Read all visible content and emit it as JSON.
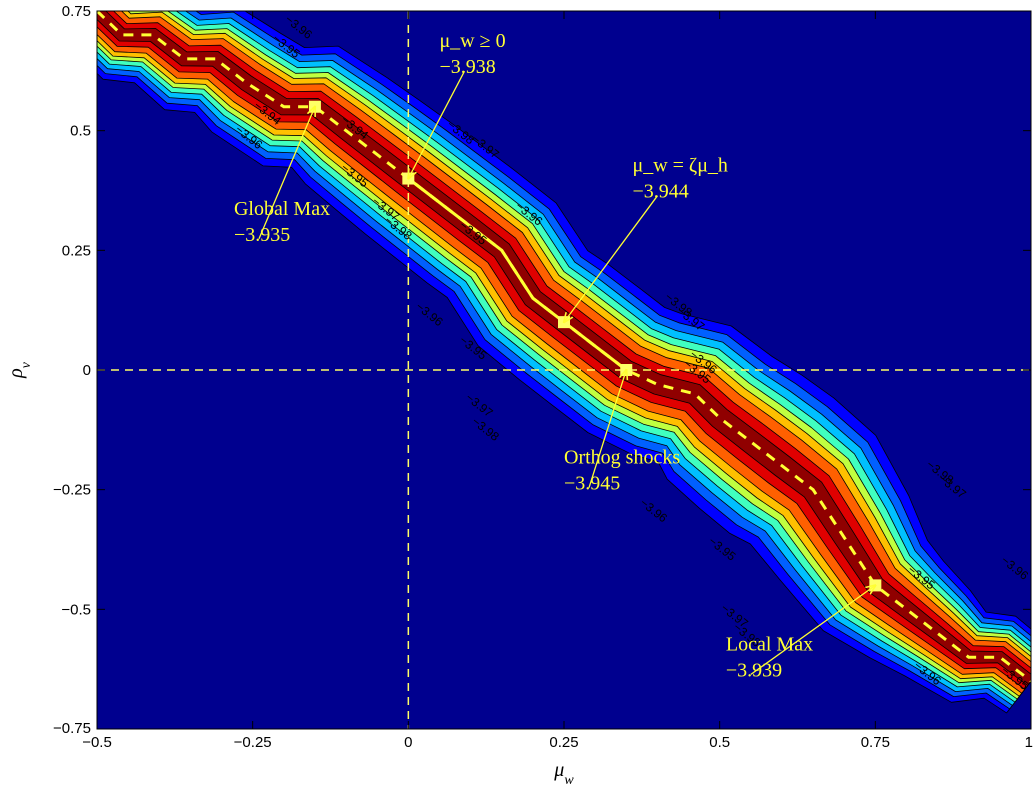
{
  "chart_data": {
    "type": "contour",
    "xlabel": "μ_w",
    "ylabel": "ρ_v",
    "xlim": [
      -0.5,
      1.0
    ],
    "ylim": [
      -0.75,
      0.75
    ],
    "x_ticks": [
      {
        "value": -0.5,
        "label": "−0.5"
      },
      {
        "value": -0.25,
        "label": "−0.25"
      },
      {
        "value": 0,
        "label": "0"
      },
      {
        "value": 0.25,
        "label": "0.25"
      },
      {
        "value": 0.5,
        "label": "0.5"
      },
      {
        "value": 0.75,
        "label": "0.75"
      },
      {
        "value": 1.0,
        "label": "1"
      }
    ],
    "y_ticks": [
      {
        "value": 0.75,
        "label": "0.75"
      },
      {
        "value": 0.5,
        "label": "0.5"
      },
      {
        "value": 0.25,
        "label": "0.25"
      },
      {
        "value": 0,
        "label": "0"
      },
      {
        "value": -0.25,
        "label": "−0.25"
      },
      {
        "value": -0.5,
        "label": "−0.5"
      },
      {
        "value": -0.75,
        "label": "−0.75"
      }
    ],
    "reference_lines": {
      "x": 0,
      "y": 0
    },
    "ridge_path": [
      [
        -0.5,
        0.75
      ],
      [
        -0.46,
        0.7
      ],
      [
        -0.41,
        0.7
      ],
      [
        -0.36,
        0.65
      ],
      [
        -0.31,
        0.65
      ],
      [
        -0.26,
        0.6
      ],
      [
        -0.2,
        0.55
      ],
      [
        -0.15,
        0.55
      ],
      [
        -0.1,
        0.5
      ],
      [
        -0.05,
        0.45
      ],
      [
        0,
        0.4
      ],
      [
        0.1,
        0.3
      ],
      [
        0.15,
        0.25
      ],
      [
        0.2,
        0.15
      ],
      [
        0.25,
        0.1
      ],
      [
        0.3,
        0.05
      ],
      [
        0.35,
        0
      ],
      [
        0.4,
        -0.03
      ],
      [
        0.46,
        -0.05
      ],
      [
        0.5,
        -0.1
      ],
      [
        0.55,
        -0.15
      ],
      [
        0.6,
        -0.2
      ],
      [
        0.65,
        -0.25
      ],
      [
        0.7,
        -0.35
      ],
      [
        0.75,
        -0.45
      ],
      [
        0.8,
        -0.5
      ],
      [
        0.85,
        -0.55
      ],
      [
        0.9,
        -0.6
      ],
      [
        0.95,
        -0.6
      ],
      [
        1.0,
        -0.65
      ]
    ],
    "constrained_path": [
      [
        0,
        0.4
      ],
      [
        0.1,
        0.3
      ],
      [
        0.15,
        0.25
      ],
      [
        0.2,
        0.15
      ],
      [
        0.25,
        0.1
      ],
      [
        0.3,
        0.05
      ],
      [
        0.35,
        0
      ]
    ],
    "contour_labels": [
      {
        "text": "−3.96",
        "x": -0.18,
        "y": 0.71
      },
      {
        "text": "−3.95",
        "x": -0.2,
        "y": 0.67
      },
      {
        "text": "−3.94",
        "x": -0.23,
        "y": 0.53
      },
      {
        "text": "−3.94",
        "x": -0.09,
        "y": 0.5
      },
      {
        "text": "−3.96",
        "x": -0.26,
        "y": 0.48
      },
      {
        "text": "−3.95",
        "x": -0.09,
        "y": 0.4
      },
      {
        "text": "−3.97",
        "x": -0.04,
        "y": 0.33
      },
      {
        "text": "−3.98",
        "x": -0.02,
        "y": 0.29
      },
      {
        "text": "−3.98",
        "x": 0.08,
        "y": 0.49
      },
      {
        "text": "−3.97",
        "x": 0.12,
        "y": 0.46
      },
      {
        "text": "−3.96",
        "x": 0.19,
        "y": 0.32
      },
      {
        "text": "−3.95",
        "x": 0.1,
        "y": 0.28
      },
      {
        "text": "−3.96",
        "x": 0.03,
        "y": 0.11
      },
      {
        "text": "−3.95",
        "x": 0.1,
        "y": 0.04
      },
      {
        "text": "−3.97",
        "x": 0.11,
        "y": -0.08
      },
      {
        "text": "−3.98",
        "x": 0.12,
        "y": -0.13
      },
      {
        "text": "−3.98",
        "x": 0.43,
        "y": 0.13
      },
      {
        "text": "−3.97",
        "x": 0.45,
        "y": 0.1
      },
      {
        "text": "−3.96",
        "x": 0.47,
        "y": 0.01
      },
      {
        "text": "−3.95",
        "x": 0.46,
        "y": -0.01
      },
      {
        "text": "−3.96",
        "x": 0.39,
        "y": -0.3
      },
      {
        "text": "−3.95",
        "x": 0.5,
        "y": -0.38
      },
      {
        "text": "−3.97",
        "x": 0.52,
        "y": -0.52
      },
      {
        "text": "−3.98",
        "x": 0.54,
        "y": -0.56
      },
      {
        "text": "−3.98",
        "x": 0.85,
        "y": -0.22
      },
      {
        "text": "−3.97",
        "x": 0.87,
        "y": -0.25
      },
      {
        "text": "−3.95",
        "x": 0.82,
        "y": -0.44
      },
      {
        "text": "−3.96",
        "x": 0.97,
        "y": -0.42
      },
      {
        "text": "−3.96",
        "x": 0.83,
        "y": -0.64
      },
      {
        "text": "−3.95",
        "x": 0.97,
        "y": -0.65
      }
    ],
    "annotations": [
      {
        "label": "μ_w ≥ 0",
        "value": "−3.938",
        "point": [
          0,
          0.4
        ],
        "text_pos": [
          0.05,
          0.62
        ]
      },
      {
        "label": "μ_w = ζμ_h",
        "value": "−3.944",
        "point": [
          0.25,
          0.1
        ],
        "text_pos": [
          0.36,
          0.36
        ]
      },
      {
        "label": "Global Max",
        "value": "−3.935",
        "point": [
          -0.15,
          0.55
        ],
        "text_pos": [
          -0.28,
          0.27
        ]
      },
      {
        "label": "Orthog shocks",
        "value": "−3.945",
        "point": [
          0.35,
          0
        ],
        "text_pos": [
          0.25,
          -0.25
        ]
      },
      {
        "label": "Local Max",
        "value": "−3.939",
        "point": [
          0.75,
          -0.45
        ],
        "text_pos": [
          0.51,
          -0.64
        ]
      }
    ],
    "colors": {
      "background": "#00008f",
      "levels": [
        "#0000ff",
        "#0060ff",
        "#00c0ff",
        "#40ffbf",
        "#c0ff40",
        "#ffc000",
        "#ff6000",
        "#e00000",
        "#900000"
      ],
      "annotation": "#ffff33",
      "reference_line": "#ffff66"
    }
  }
}
